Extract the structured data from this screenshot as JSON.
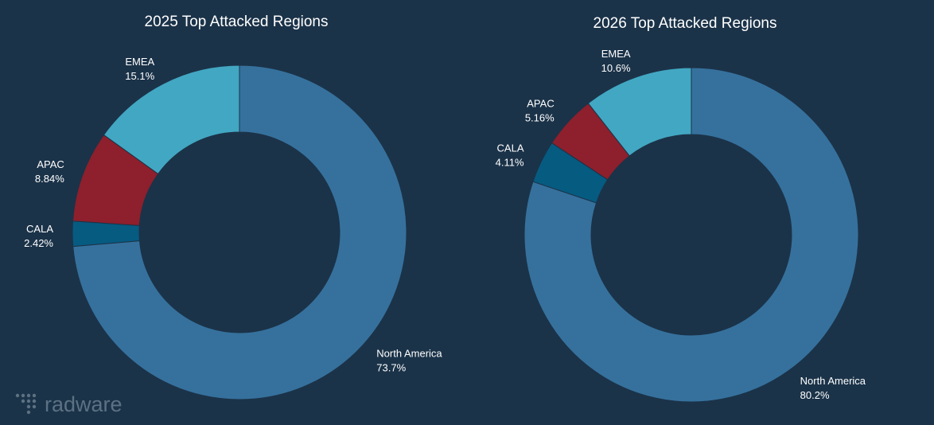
{
  "colors": {
    "background": "#1b3349",
    "North America": "#36719d",
    "EMEA": "#42a7c2",
    "APAC": "#8e1f2c",
    "CALA": "#065b81",
    "logo": "#5c7283"
  },
  "logo": {
    "text": "radware",
    "icon": "radware-dots-icon"
  },
  "chart_data": [
    {
      "type": "pie",
      "title": "2025 Top Attacked Regions",
      "hole": 0.6,
      "slices": [
        {
          "label": "North America",
          "value": 73.7,
          "display": "73.7%"
        },
        {
          "label": "CALA",
          "value": 2.42,
          "display": "2.42%"
        },
        {
          "label": "APAC",
          "value": 8.84,
          "display": "8.84%"
        },
        {
          "label": "EMEA",
          "value": 15.1,
          "display": "15.1%"
        }
      ]
    },
    {
      "type": "pie",
      "title": "2026 Top Attacked Regions",
      "hole": 0.6,
      "slices": [
        {
          "label": "North America",
          "value": 80.2,
          "display": "80.2%"
        },
        {
          "label": "CALA",
          "value": 4.11,
          "display": "4.11%"
        },
        {
          "label": "APAC",
          "value": 5.16,
          "display": "5.16%"
        },
        {
          "label": "EMEA",
          "value": 10.6,
          "display": "10.6%"
        }
      ]
    }
  ]
}
